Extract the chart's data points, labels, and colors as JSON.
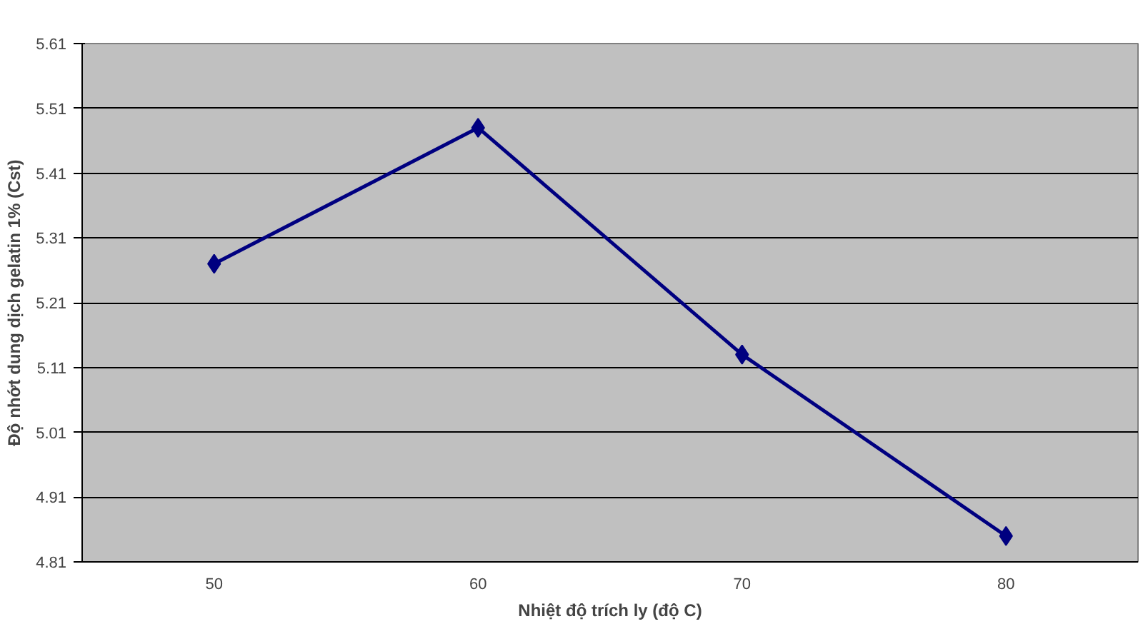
{
  "chart_data": {
    "type": "line",
    "xlabel": "Nhiệt độ trích ly (độ C)",
    "ylabel": "Độ nhớt dung dịch gelatin 1% (Cst)",
    "categories": [
      "50",
      "60",
      "70",
      "80"
    ],
    "series": [
      {
        "color": "#000080",
        "values": [
          5.27,
          5.48,
          5.13,
          4.85
        ]
      }
    ],
    "ylim": [
      4.81,
      5.61
    ],
    "yticks": [
      4.81,
      4.91,
      5.01,
      5.11,
      5.21,
      5.31,
      5.41,
      5.51,
      5.61
    ],
    "grid": "y",
    "marker": "diamond",
    "line_style": "solid"
  }
}
